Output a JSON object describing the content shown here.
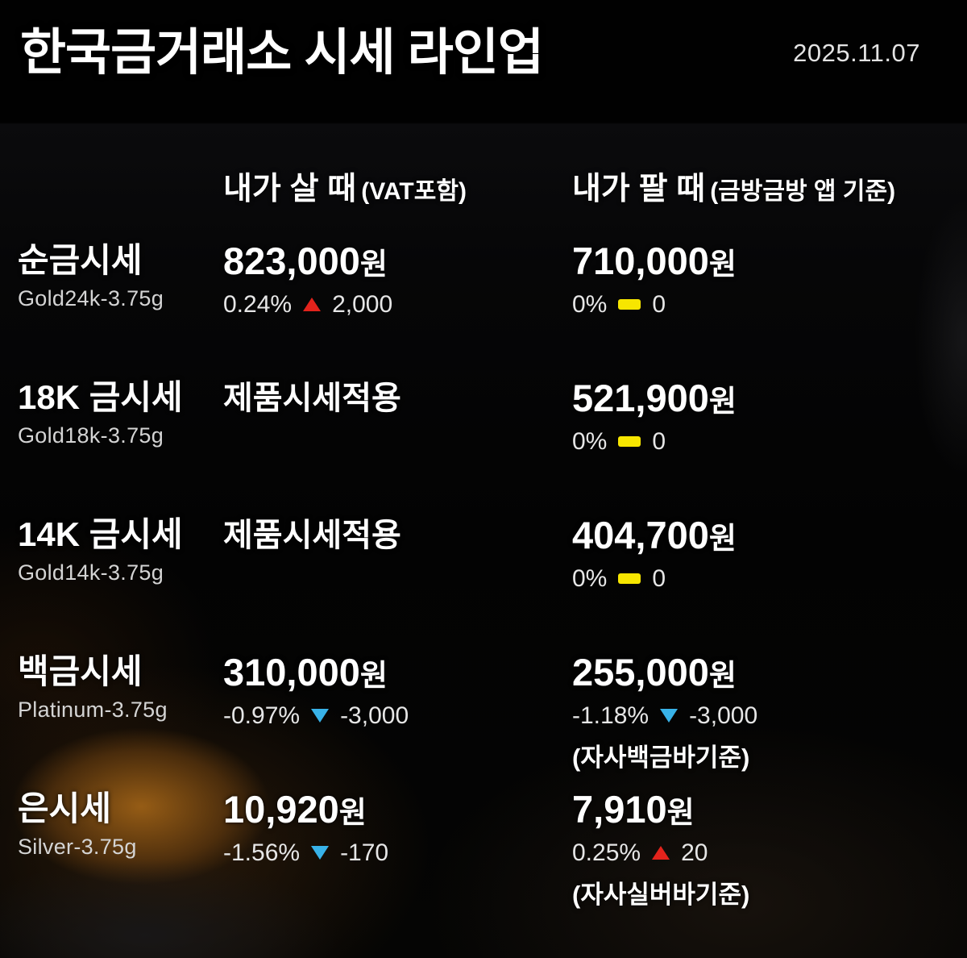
{
  "header": {
    "title": "한국금거래소 시세 라인업",
    "date": "2025.11.07"
  },
  "columns": {
    "buy_main": "내가 살 때",
    "buy_sub": "(VAT포함)",
    "sell_main": "내가 팔 때",
    "sell_sub": "(금방금방 앱 기준)"
  },
  "colors": {
    "up_red": "#e3231c",
    "down_blue": "#38b2e8",
    "flat_yellow": "#f7e600",
    "background": "#020202",
    "text_primary": "#ffffff",
    "text_secondary": "#d4d4d4"
  },
  "icons": {
    "up": "up-triangle-icon",
    "down": "down-triangle-icon",
    "flat": "flat-dash-icon"
  },
  "rows": [
    {
      "name": "순금시세",
      "sub": "Gold24k-3.75g",
      "buy": {
        "price": "823,000",
        "unit": "원",
        "pct": "0.24%",
        "dir": "up",
        "delta": "2,000"
      },
      "sell": {
        "price": "710,000",
        "unit": "원",
        "pct": "0%",
        "dir": "flat",
        "delta": "0"
      }
    },
    {
      "name": "18K 금시세",
      "sub": "Gold18k-3.75g",
      "buy": {
        "text": "제품시세적용"
      },
      "sell": {
        "price": "521,900",
        "unit": "원",
        "pct": "0%",
        "dir": "flat",
        "delta": "0"
      }
    },
    {
      "name": "14K 금시세",
      "sub": "Gold14k-3.75g",
      "buy": {
        "text": "제품시세적용"
      },
      "sell": {
        "price": "404,700",
        "unit": "원",
        "pct": "0%",
        "dir": "flat",
        "delta": "0"
      }
    },
    {
      "name": "백금시세",
      "sub": "Platinum-3.75g",
      "buy": {
        "price": "310,000",
        "unit": "원",
        "pct": "-0.97%",
        "dir": "down",
        "delta": "-3,000"
      },
      "sell": {
        "price": "255,000",
        "unit": "원",
        "pct": "-1.18%",
        "dir": "down",
        "delta": "-3,000",
        "note": "(자사백금바기준)"
      }
    },
    {
      "name": "은시세",
      "sub": "Silver-3.75g",
      "buy": {
        "price": "10,920",
        "unit": "원",
        "pct": "-1.56%",
        "dir": "down",
        "delta": "-170"
      },
      "sell": {
        "price": "7,910",
        "unit": "원",
        "pct": "0.25%",
        "dir": "up",
        "delta": "20",
        "note": "(자사실버바기준)"
      }
    }
  ]
}
